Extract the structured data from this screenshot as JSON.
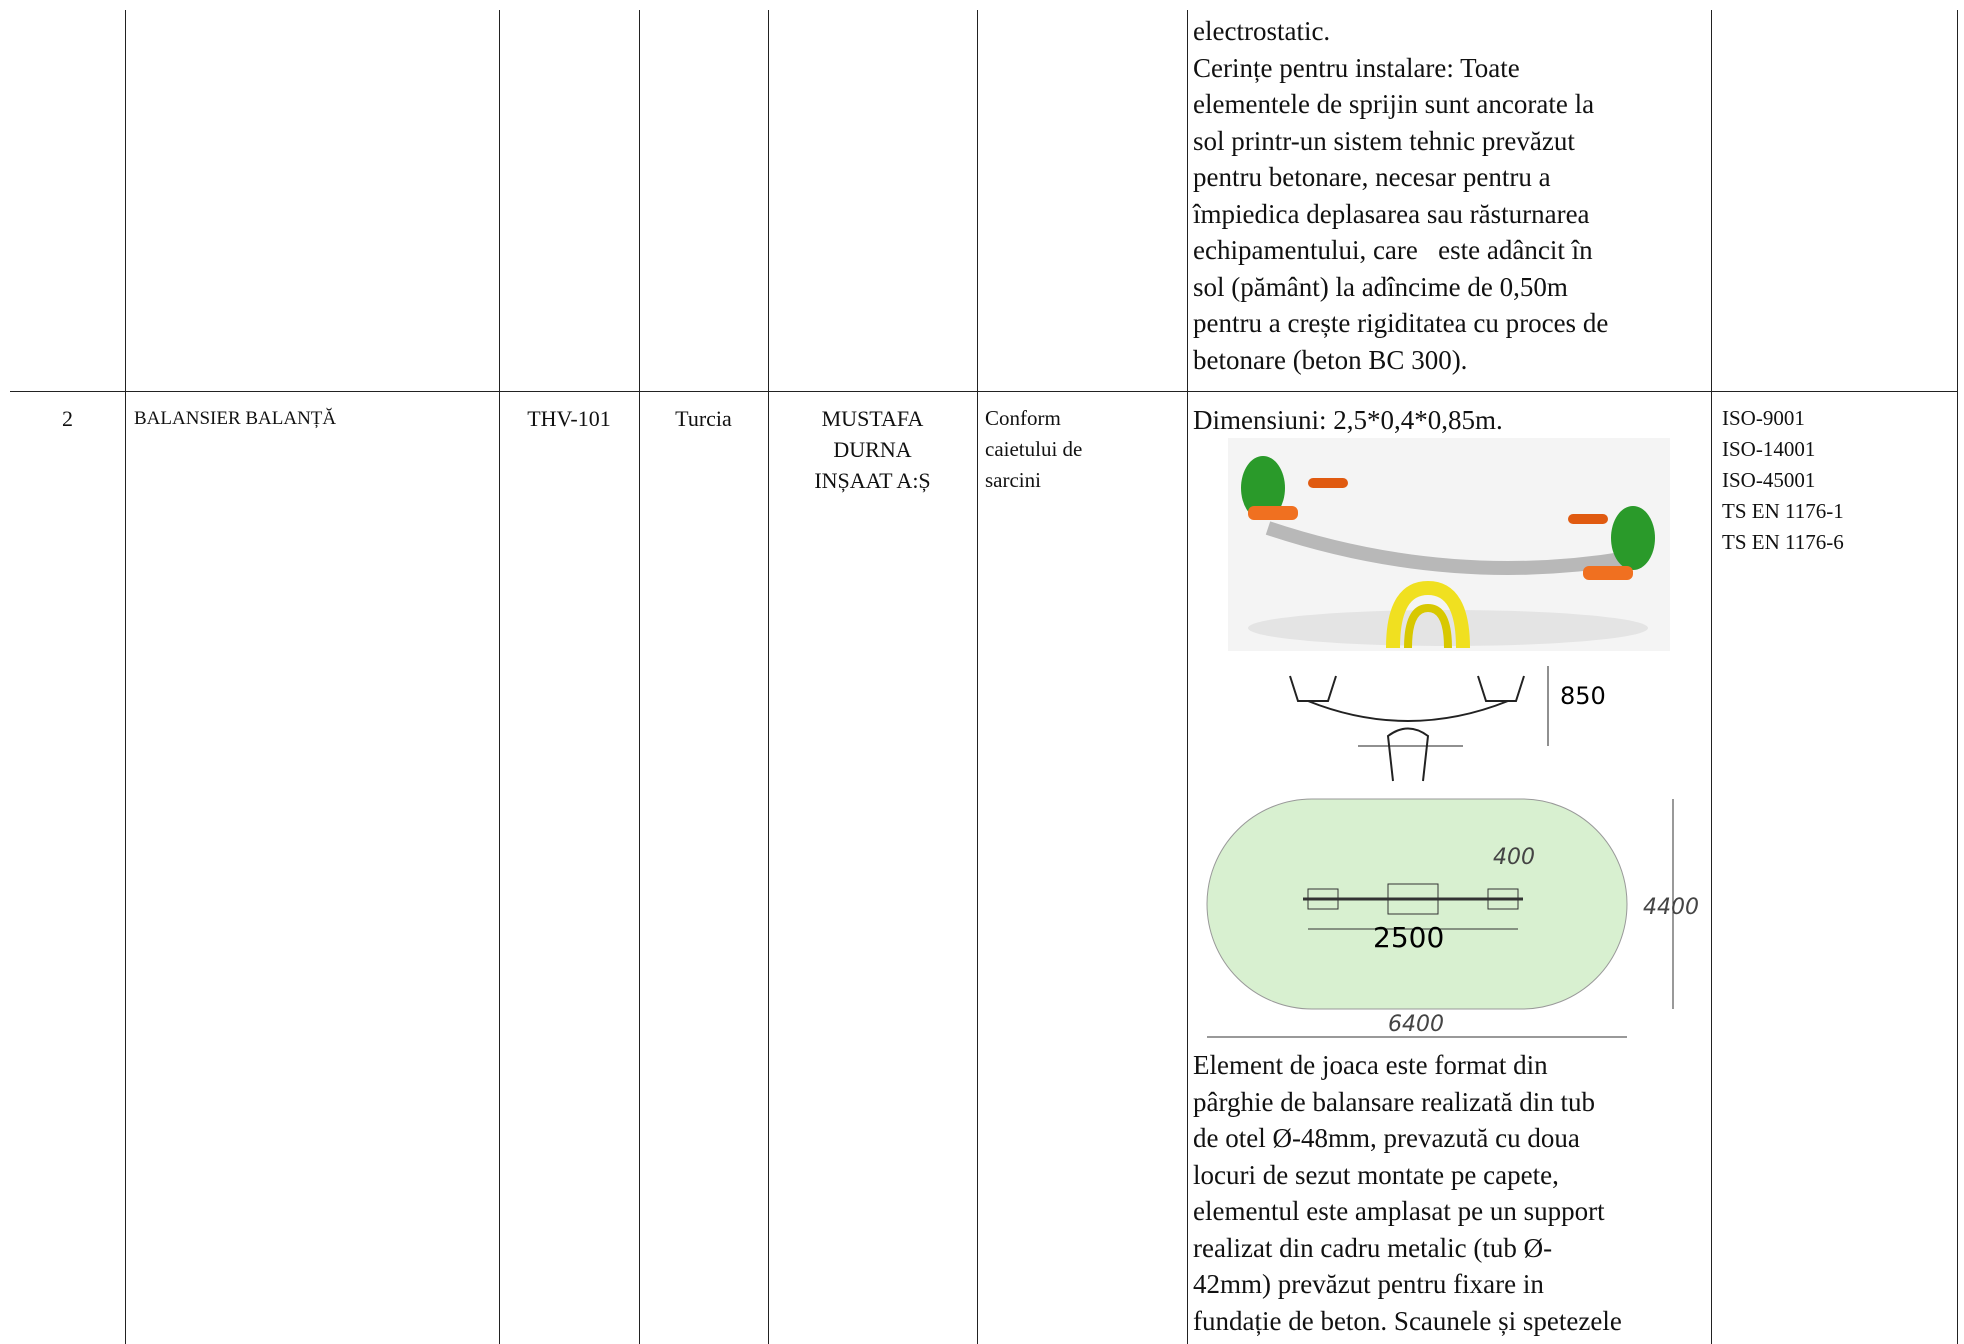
{
  "rows": [
    {
      "description_lines": [
        "electrostatic.",
        "Cerințe pentru instalare: Toate",
        "elementele de sprijin sunt ancorate la",
        "sol printr-un sistem tehnic prevăzut",
        "pentru betonare, necesar pentru a",
        "împiedica deplasarea sau răsturnarea",
        "echipamentului, care   este adâncit în",
        "sol (pământ) la adîncime de 0,50m",
        "pentru a crește rigiditatea cu proces de",
        "betonare (beton BC 300)."
      ]
    },
    {
      "number": "2",
      "name": "BALANSIER BALANȚĂ",
      "code": "THV-101",
      "country": "Turcia",
      "producer_lines": [
        "MUSTAFA",
        "DURNA",
        "INȘAAT A:Ș"
      ],
      "conformity_lines": [
        "Conform",
        "caietului de",
        "sarcini"
      ],
      "dimensions": "Dimensiuni: 2,5*0,4*0,85m.",
      "drawing_labels": {
        "height": "850",
        "width": "400",
        "zone_width": "4400",
        "length": "2500",
        "zone_length": "6400"
      },
      "description_lines": [
        "Element de joaca este format din",
        "pârghie de balansare realizată din tub",
        "de otel Ø-48mm, prevazută cu doua",
        "locuri de sezut montate pe capete,",
        "elementul este amplasat pe un support",
        "realizat din cadru metalic (tub Ø-",
        "42mm) prevăzut pentru fixare in",
        "fundație de beton. Scaunele și spetezele"
      ],
      "standards": [
        "ISO-9001",
        "ISO-14001",
        "ISO-45001",
        "TS EN 1176-1",
        "TS EN 1176-6"
      ]
    }
  ]
}
